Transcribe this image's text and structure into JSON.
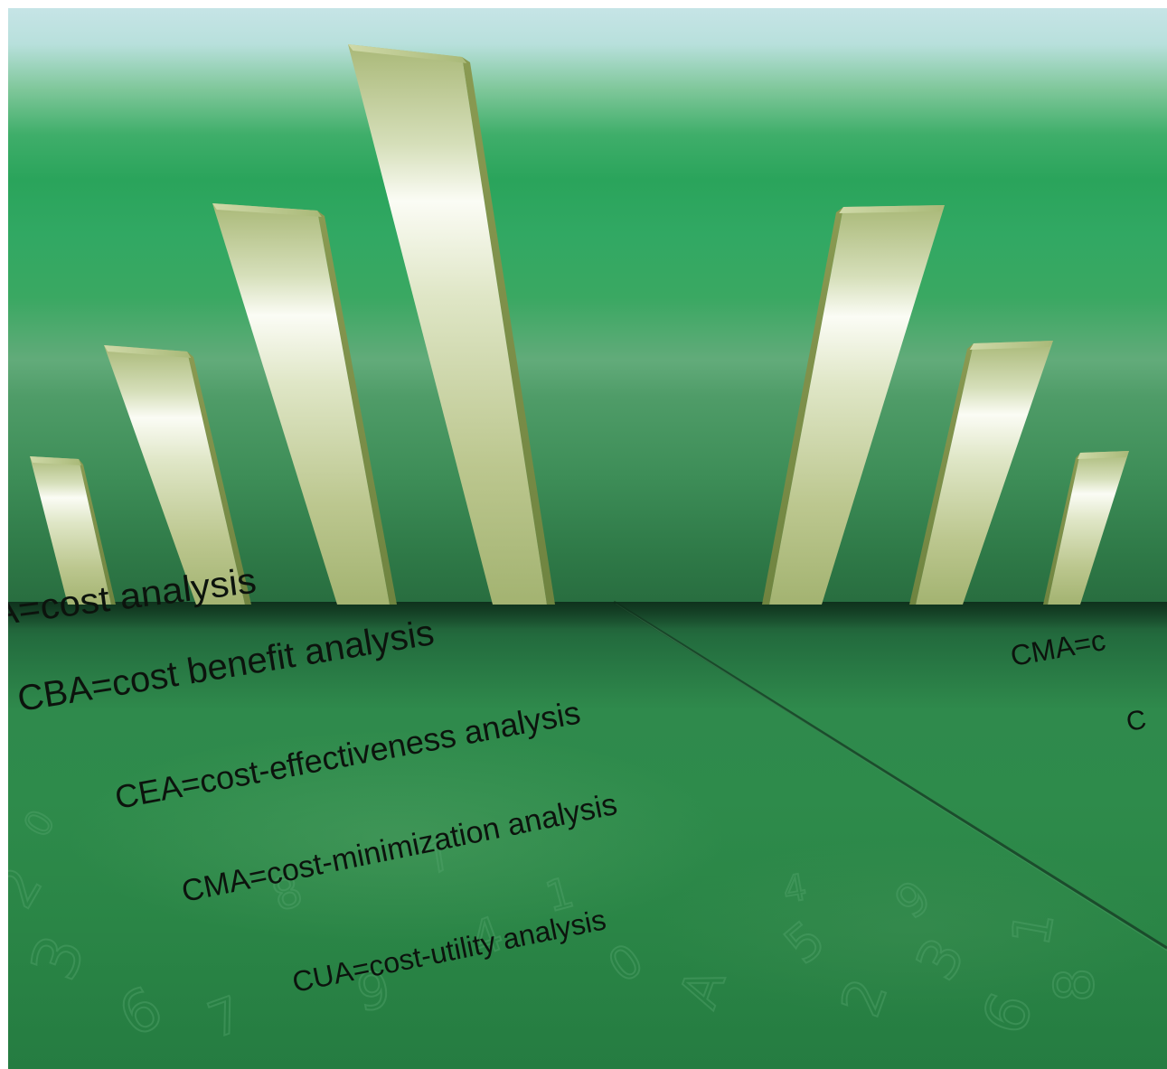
{
  "definitions": [
    {
      "text": "A=cost analysis"
    },
    {
      "text": "CBA=cost benefit analysis"
    },
    {
      "text": "CEA=cost-effectiveness analysis"
    },
    {
      "text": "CMA=cost-minimization analysis"
    },
    {
      "text": "CUA=cost-utility analysis"
    },
    {
      "text": "CMA=c"
    },
    {
      "text": "C"
    }
  ],
  "colors": {
    "sky_top": "#c6e4e6",
    "green_mid": "#2aa45b",
    "floor_dark": "#1c4e2f",
    "bar_light": "#f3f6ea",
    "bar_olive": "#9eae6a",
    "text": "#0c130d"
  },
  "background_glyphs": [
    "2",
    "3",
    "6",
    "8",
    "9",
    "7",
    "4",
    "1",
    "0",
    "A",
    "5"
  ]
}
